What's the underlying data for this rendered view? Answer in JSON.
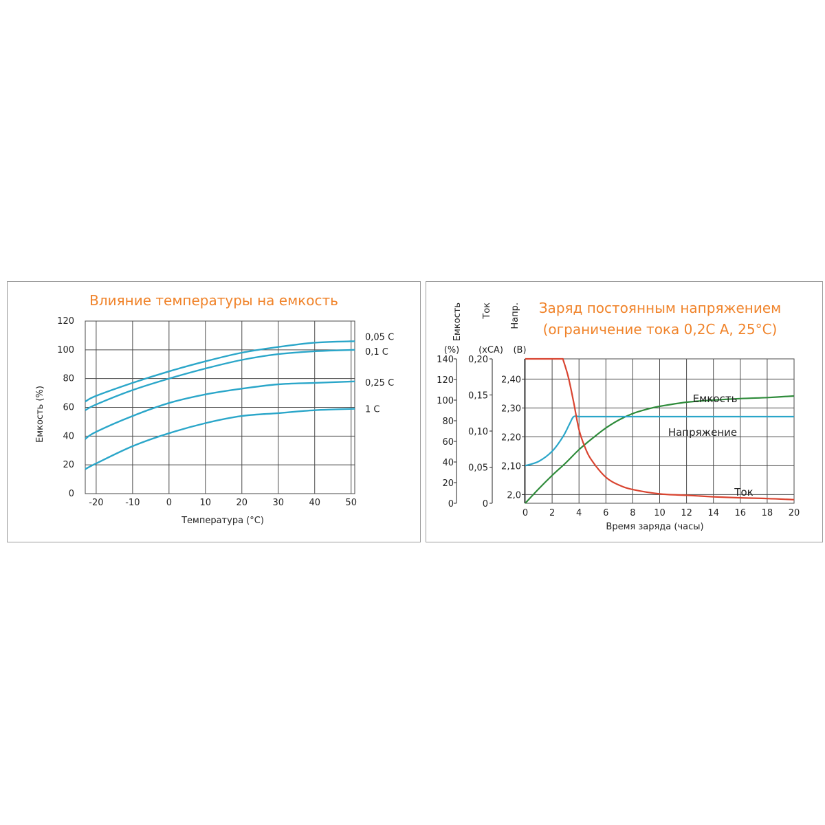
{
  "chart_data": [
    {
      "type": "line",
      "title": "Влияние температуры на емкость",
      "xlabel": "Температура (°С)",
      "ylabel": "Емкость (%)",
      "xlim": [
        -23,
        51
      ],
      "ylim": [
        0,
        120
      ],
      "x_ticks": [
        "-20",
        "-10",
        "0",
        "10",
        "20",
        "30",
        "40",
        "50"
      ],
      "y_ticks": [
        "0",
        "20",
        "40",
        "60",
        "80",
        "100",
        "120"
      ],
      "grid": true,
      "color": "#2aa6c9",
      "series": [
        {
          "name": "0,05 С",
          "x": [
            -23,
            -20,
            -10,
            0,
            10,
            20,
            30,
            40,
            51
          ],
          "y": [
            64,
            68,
            77,
            85,
            92,
            98,
            102,
            105,
            106
          ]
        },
        {
          "name": "0,1 С",
          "x": [
            -23,
            -20,
            -10,
            0,
            10,
            20,
            30,
            40,
            51
          ],
          "y": [
            58,
            62,
            72,
            80,
            87,
            93,
            97,
            99,
            100
          ]
        },
        {
          "name": "0,25 С",
          "x": [
            -23,
            -20,
            -10,
            0,
            10,
            20,
            30,
            40,
            51
          ],
          "y": [
            38,
            43,
            54,
            63,
            69,
            73,
            76,
            77,
            78
          ]
        },
        {
          "name": "1 С",
          "x": [
            -23,
            -20,
            -10,
            0,
            10,
            20,
            30,
            40,
            51
          ],
          "y": [
            17,
            21,
            33,
            42,
            49,
            54,
            56,
            58,
            59
          ]
        }
      ]
    },
    {
      "type": "line",
      "title": "Заряд постоянным напряжением",
      "subtitle": "(ограничение тока 0,2С А, 25°С)",
      "xlabel": "Время заряда (часы)",
      "xlim": [
        0,
        20
      ],
      "x_ticks": [
        "0",
        "2",
        "4",
        "6",
        "8",
        "10",
        "12",
        "14",
        "16",
        "18",
        "20"
      ],
      "grid": true,
      "axes": [
        {
          "label": "Емкость",
          "unit": "(%)",
          "ticks": [
            "0",
            "20",
            "40",
            "60",
            "80",
            "100",
            "120",
            "140"
          ],
          "range": [
            0,
            140
          ]
        },
        {
          "label": "Ток",
          "unit": "(xCA)",
          "ticks": [
            "0",
            "0,05",
            "0,10",
            "0,15",
            "0,20"
          ],
          "range": [
            0,
            0.2
          ]
        },
        {
          "label": "Напр.",
          "unit": "(В)",
          "ticks": [
            "2,0",
            "2,10",
            "2,20",
            "2,30",
            "2,40"
          ],
          "range": [
            1.97,
            2.47
          ]
        }
      ],
      "series": [
        {
          "name": "Емкость",
          "axis": 0,
          "color": "#2e8b3a",
          "x": [
            0,
            1,
            2,
            3,
            4,
            5,
            6,
            7,
            8,
            9,
            10,
            12,
            14,
            16,
            18,
            20
          ],
          "y": [
            0,
            14,
            27,
            39,
            52,
            63,
            73,
            81,
            87,
            91,
            94,
            98,
            100,
            101.5,
            102.5,
            104
          ]
        },
        {
          "name": "Напряжение",
          "axis": 2,
          "color": "#2aa6c9",
          "x": [
            0,
            1,
            2,
            2.8,
            3.3,
            3.6,
            4,
            6,
            8,
            10,
            12,
            14,
            16,
            18,
            20
          ],
          "y": [
            2.1,
            2.115,
            2.15,
            2.2,
            2.245,
            2.27,
            2.27,
            2.27,
            2.27,
            2.27,
            2.27,
            2.27,
            2.27,
            2.27,
            2.27
          ]
        },
        {
          "name": "Ток",
          "axis": 1,
          "color": "#d94430",
          "x": [
            0,
            2.8,
            3.2,
            3.6,
            4,
            4.5,
            5,
            6,
            7,
            8,
            10,
            12,
            14,
            16,
            18,
            20
          ],
          "y": [
            0.2,
            0.2,
            0.175,
            0.14,
            0.102,
            0.075,
            0.058,
            0.036,
            0.025,
            0.019,
            0.013,
            0.011,
            0.009,
            0.0075,
            0.0065,
            0.005
          ]
        }
      ]
    }
  ]
}
